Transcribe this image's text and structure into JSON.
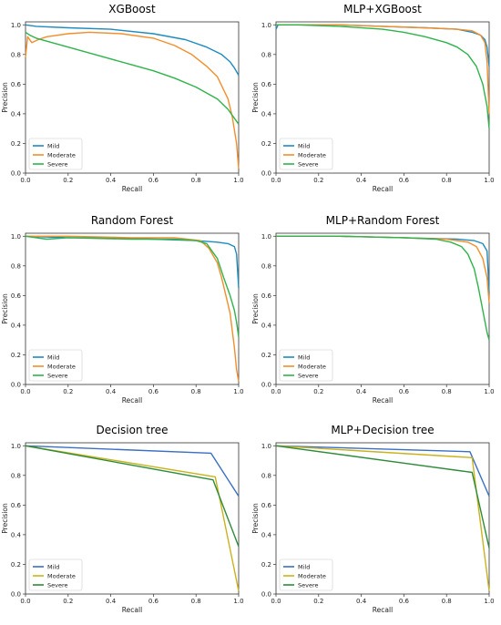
{
  "chart_data": [
    {
      "type": "line",
      "title": "XGBoost",
      "xlabel": "Recall",
      "ylabel": "Precision",
      "xlim": [
        0,
        1
      ],
      "ylim": [
        0,
        1.02
      ],
      "xticks": [
        "0.0",
        "0.2",
        "0.4",
        "0.6",
        "0.8",
        "1.0"
      ],
      "yticks": [
        "0.0",
        "0.2",
        "0.4",
        "0.6",
        "0.8",
        "1.0"
      ],
      "legend_loc": "lower left",
      "series": [
        {
          "name": "Mild",
          "color": "#1f8bbf",
          "x": [
            0.0,
            0.05,
            0.2,
            0.4,
            0.6,
            0.75,
            0.85,
            0.92,
            0.96,
            0.98,
            1.0
          ],
          "y": [
            1.0,
            0.99,
            0.98,
            0.97,
            0.94,
            0.9,
            0.85,
            0.8,
            0.75,
            0.71,
            0.66
          ]
        },
        {
          "name": "Moderate",
          "color": "#f28e2b",
          "x": [
            0.0,
            0.01,
            0.03,
            0.06,
            0.1,
            0.2,
            0.3,
            0.45,
            0.6,
            0.7,
            0.78,
            0.85,
            0.9,
            0.95,
            0.97,
            0.99,
            1.0
          ],
          "y": [
            0.78,
            0.92,
            0.88,
            0.9,
            0.92,
            0.94,
            0.95,
            0.94,
            0.91,
            0.86,
            0.8,
            0.72,
            0.65,
            0.5,
            0.38,
            0.2,
            0.03
          ]
        },
        {
          "name": "Severe",
          "color": "#2fb34a",
          "x": [
            0.0,
            0.02,
            0.05,
            0.1,
            0.2,
            0.3,
            0.4,
            0.5,
            0.6,
            0.7,
            0.8,
            0.9,
            0.95,
            1.0
          ],
          "y": [
            0.95,
            0.93,
            0.91,
            0.89,
            0.85,
            0.81,
            0.77,
            0.73,
            0.69,
            0.64,
            0.58,
            0.5,
            0.43,
            0.33
          ]
        }
      ]
    },
    {
      "type": "line",
      "title": "MLP+XGBoost",
      "xlabel": "Recall",
      "ylabel": "Precision",
      "xlim": [
        0,
        1
      ],
      "ylim": [
        0,
        1.02
      ],
      "xticks": [
        "0.0",
        "0.2",
        "0.4",
        "0.6",
        "0.8",
        "1.0"
      ],
      "yticks": [
        "0.0",
        "0.2",
        "0.4",
        "0.6",
        "0.8",
        "1.0"
      ],
      "legend_loc": "lower left",
      "series": [
        {
          "name": "Mild",
          "color": "#1f8bbf",
          "x": [
            0.0,
            0.01,
            0.1,
            0.3,
            0.5,
            0.7,
            0.85,
            0.92,
            0.96,
            0.98,
            0.99,
            1.0
          ],
          "y": [
            0.97,
            1.0,
            1.0,
            1.0,
            0.99,
            0.98,
            0.97,
            0.95,
            0.93,
            0.9,
            0.85,
            0.72
          ]
        },
        {
          "name": "Moderate",
          "color": "#f28e2b",
          "x": [
            0.0,
            0.1,
            0.3,
            0.5,
            0.7,
            0.85,
            0.92,
            0.96,
            0.98,
            0.99,
            1.0
          ],
          "y": [
            1.0,
            1.0,
            1.0,
            0.99,
            0.98,
            0.97,
            0.96,
            0.93,
            0.88,
            0.75,
            0.4
          ]
        },
        {
          "name": "Severe",
          "color": "#2fb34a",
          "x": [
            0.0,
            0.1,
            0.3,
            0.5,
            0.6,
            0.7,
            0.8,
            0.85,
            0.9,
            0.94,
            0.97,
            0.99,
            1.0
          ],
          "y": [
            1.0,
            1.0,
            0.99,
            0.97,
            0.95,
            0.92,
            0.88,
            0.85,
            0.8,
            0.72,
            0.6,
            0.45,
            0.3
          ]
        }
      ]
    },
    {
      "type": "line",
      "title": "Random Forest",
      "xlabel": "Recall",
      "ylabel": "Precision",
      "xlim": [
        0,
        1
      ],
      "ylim": [
        0,
        1.02
      ],
      "xticks": [
        "0.0",
        "0.2",
        "0.4",
        "0.6",
        "0.8",
        "1.0"
      ],
      "yticks": [
        "0.0",
        "0.2",
        "0.4",
        "0.6",
        "0.8",
        "1.0"
      ],
      "legend_loc": "lower left",
      "series": [
        {
          "name": "Mild",
          "color": "#1f8bbf",
          "x": [
            0.0,
            0.2,
            0.4,
            0.6,
            0.8,
            0.9,
            0.95,
            0.98,
            0.99,
            1.0
          ],
          "y": [
            1.0,
            0.99,
            0.99,
            0.98,
            0.97,
            0.96,
            0.95,
            0.93,
            0.88,
            0.65
          ]
        },
        {
          "name": "Moderate",
          "color": "#f28e2b",
          "x": [
            0.0,
            0.2,
            0.5,
            0.7,
            0.82,
            0.86,
            0.9,
            0.92,
            0.94,
            0.96,
            0.98,
            0.99,
            1.0
          ],
          "y": [
            1.0,
            1.0,
            0.99,
            0.99,
            0.97,
            0.92,
            0.82,
            0.72,
            0.6,
            0.48,
            0.25,
            0.1,
            0.02
          ]
        },
        {
          "name": "Severe",
          "color": "#2fb34a",
          "x": [
            0.0,
            0.05,
            0.1,
            0.2,
            0.5,
            0.7,
            0.8,
            0.85,
            0.9,
            0.93,
            0.96,
            0.98,
            0.99,
            1.0
          ],
          "y": [
            1.0,
            0.99,
            0.98,
            0.99,
            0.98,
            0.98,
            0.97,
            0.95,
            0.85,
            0.72,
            0.6,
            0.5,
            0.42,
            0.32
          ]
        }
      ]
    },
    {
      "type": "line",
      "title": "MLP+Random Forest",
      "xlabel": "Recall",
      "ylabel": "Precision",
      "xlim": [
        0,
        1
      ],
      "ylim": [
        0,
        1.02
      ],
      "xticks": [
        "0.0",
        "0.2",
        "0.4",
        "0.6",
        "0.8",
        "1.0"
      ],
      "yticks": [
        "0.0",
        "0.2",
        "0.4",
        "0.6",
        "0.8",
        "1.0"
      ],
      "legend_loc": "lower left",
      "series": [
        {
          "name": "Mild",
          "color": "#1f8bbf",
          "x": [
            0.0,
            0.3,
            0.6,
            0.85,
            0.93,
            0.97,
            0.99,
            1.0
          ],
          "y": [
            1.0,
            1.0,
            0.99,
            0.98,
            0.97,
            0.95,
            0.9,
            0.62
          ]
        },
        {
          "name": "Moderate",
          "color": "#f28e2b",
          "x": [
            0.0,
            0.3,
            0.6,
            0.8,
            0.9,
            0.94,
            0.97,
            0.99,
            1.0
          ],
          "y": [
            1.0,
            1.0,
            0.99,
            0.98,
            0.96,
            0.93,
            0.85,
            0.72,
            0.55
          ]
        },
        {
          "name": "Severe",
          "color": "#2fb34a",
          "x": [
            0.0,
            0.3,
            0.6,
            0.75,
            0.82,
            0.87,
            0.9,
            0.93,
            0.95,
            0.97,
            0.99,
            1.0
          ],
          "y": [
            1.0,
            1.0,
            0.99,
            0.98,
            0.96,
            0.93,
            0.88,
            0.78,
            0.65,
            0.5,
            0.35,
            0.3
          ]
        }
      ]
    },
    {
      "type": "line",
      "title": "Decision tree",
      "xlabel": "Recall",
      "ylabel": "Precision",
      "xlim": [
        0,
        1
      ],
      "ylim": [
        0,
        1.02
      ],
      "xticks": [
        "0.0",
        "0.2",
        "0.4",
        "0.6",
        "0.8",
        "1.0"
      ],
      "yticks": [
        "0.0",
        "0.2",
        "0.4",
        "0.6",
        "0.8",
        "1.0"
      ],
      "legend_loc": "lower left",
      "series": [
        {
          "name": "Mild",
          "color": "#3a6fc4",
          "x": [
            0.0,
            0.87,
            1.0
          ],
          "y": [
            1.0,
            0.95,
            0.66
          ]
        },
        {
          "name": "Moderate",
          "color": "#c9b21c",
          "x": [
            0.0,
            0.89,
            1.0
          ],
          "y": [
            1.0,
            0.79,
            0.02
          ]
        },
        {
          "name": "Severe",
          "color": "#2e8b3a",
          "x": [
            0.0,
            0.88,
            1.0
          ],
          "y": [
            1.0,
            0.77,
            0.32
          ]
        }
      ]
    },
    {
      "type": "line",
      "title": "MLP+Decision tree",
      "xlabel": "Recall",
      "ylabel": "Precision",
      "xlim": [
        0,
        1
      ],
      "ylim": [
        0,
        1.02
      ],
      "xticks": [
        "0.0",
        "0.2",
        "0.4",
        "0.6",
        "0.8",
        "1.0"
      ],
      "yticks": [
        "0.0",
        "0.2",
        "0.4",
        "0.6",
        "0.8",
        "1.0"
      ],
      "legend_loc": "lower left",
      "series": [
        {
          "name": "Mild",
          "color": "#3a6fc4",
          "x": [
            0.0,
            0.91,
            1.0
          ],
          "y": [
            1.0,
            0.96,
            0.66
          ]
        },
        {
          "name": "Moderate",
          "color": "#c9b21c",
          "x": [
            0.0,
            0.92,
            1.0
          ],
          "y": [
            1.0,
            0.92,
            0.02
          ]
        },
        {
          "name": "Severe",
          "color": "#2e8b3a",
          "x": [
            0.0,
            0.92,
            1.0
          ],
          "y": [
            1.0,
            0.82,
            0.31
          ]
        }
      ]
    }
  ]
}
